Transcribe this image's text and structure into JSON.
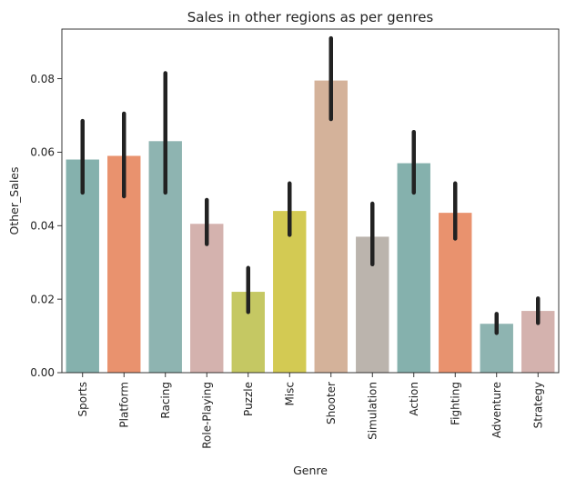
{
  "chart_data": {
    "type": "bar",
    "title": "Sales in other regions as per genres",
    "xlabel": "Genre",
    "ylabel": "Other_Sales",
    "categories": [
      "Sports",
      "Platform",
      "Racing",
      "Role-Playing",
      "Puzzle",
      "Misc",
      "Shooter",
      "Simulation",
      "Action",
      "Fighting",
      "Adventure",
      "Strategy"
    ],
    "values": [
      0.058,
      0.059,
      0.063,
      0.0405,
      0.022,
      0.044,
      0.0795,
      0.037,
      0.057,
      0.0435,
      0.0133,
      0.0168
    ],
    "error_low": [
      0.049,
      0.048,
      0.049,
      0.035,
      0.0165,
      0.0375,
      0.069,
      0.0295,
      0.049,
      0.0365,
      0.0108,
      0.0135
    ],
    "error_high": [
      0.0685,
      0.0705,
      0.0815,
      0.047,
      0.0285,
      0.0515,
      0.091,
      0.046,
      0.0655,
      0.0515,
      0.016,
      0.0202
    ],
    "colors": [
      "#85b1ad",
      "#e9926e",
      "#8eb4b1",
      "#d4b2ae",
      "#c5c863",
      "#d3ca53",
      "#d4b29a",
      "#bbb4ad",
      "#85b1ad",
      "#e9926e",
      "#8eb4b1",
      "#d4b2ae"
    ],
    "error_color": "#222222",
    "ylim": [
      0,
      0.0935
    ],
    "yticks": [
      0.0,
      0.02,
      0.04,
      0.06,
      0.08
    ],
    "ytick_labels": [
      "0.00",
      "0.02",
      "0.04",
      "0.06",
      "0.08"
    ],
    "grid": false,
    "legend": "none"
  }
}
